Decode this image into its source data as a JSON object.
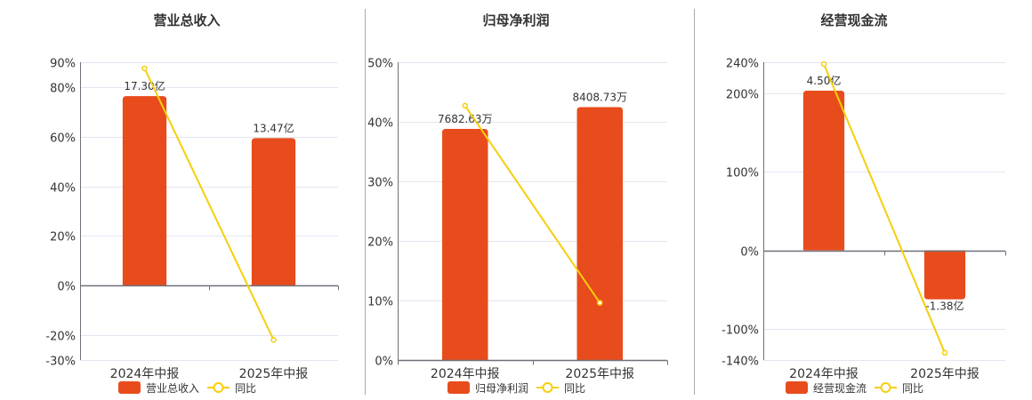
{
  "colors": {
    "bar": "#e84c1c",
    "line": "#f5cf0a",
    "grid": "#e3e6f0",
    "axis": "#6e7079",
    "text": "#333333",
    "divider": "#aaaaaa"
  },
  "chart_data": [
    {
      "type": "bar+line",
      "title": "营业总收入",
      "categories": [
        "2024年中报",
        "2025年中报"
      ],
      "bar_series": {
        "name": "营业总收入",
        "values": [
          17.3,
          13.47
        ],
        "unit": "亿",
        "labels": [
          "17.30亿",
          "13.47亿"
        ],
        "ylim": [
          -6.8,
          20.4
        ]
      },
      "line_series": {
        "name": "同比",
        "values": [
          87.5,
          -21.9
        ],
        "unit": "%"
      },
      "yticks": [
        90,
        80,
        60,
        40,
        20,
        0,
        -20,
        -30
      ],
      "ylim": [
        -30,
        90
      ],
      "legend": "bottom"
    },
    {
      "type": "bar+line",
      "title": "归母净利润",
      "categories": [
        "2024年中报",
        "2025年中报"
      ],
      "bar_series": {
        "name": "归母净利润",
        "values": [
          7682.63,
          8408.73
        ],
        "unit": "万",
        "labels": [
          "7682.63万",
          "8408.73万"
        ],
        "ylim": [
          0,
          9900
        ]
      },
      "line_series": {
        "name": "同比",
        "values": [
          42.7,
          9.6
        ],
        "unit": "%"
      },
      "yticks": [
        50,
        40,
        30,
        20,
        10,
        0
      ],
      "ylim": [
        0,
        50
      ],
      "legend": "bottom"
    },
    {
      "type": "bar+line",
      "title": "经营现金流",
      "categories": [
        "2024年中报",
        "2025年中报"
      ],
      "bar_series": {
        "name": "经营现金流",
        "values": [
          4.5,
          -1.38
        ],
        "unit": "亿",
        "labels": [
          "4.50亿",
          "-1.38亿"
        ],
        "ylim": [
          -3.09,
          5.3
        ]
      },
      "line_series": {
        "name": "同比",
        "values": [
          237.7,
          -130.8
        ],
        "unit": "%"
      },
      "yticks": [
        240,
        200,
        100,
        0,
        -100,
        -140
      ],
      "ylim": [
        -140,
        240
      ],
      "legend": "bottom"
    }
  ]
}
